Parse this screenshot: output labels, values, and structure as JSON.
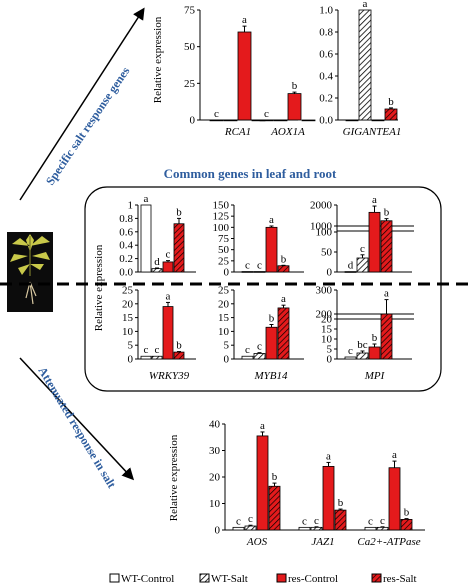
{
  "colors": {
    "red": "#e41a1c",
    "heading_blue": "#2e5d9e",
    "hatch_line": "#000000",
    "wt_control": "#ffffff"
  },
  "headings": {
    "specific": "Specific salt response genes",
    "common": "Common  genes in leaf and root",
    "attenuated": "Attenuated response in salt"
  },
  "ylabels": {
    "top": "Relative expression",
    "middle": "Relative expression",
    "bottom": "Relative expression"
  },
  "legend": [
    {
      "label": "WT-Control",
      "style": "white"
    },
    {
      "label": "WT-Salt",
      "style": "white-hatch"
    },
    {
      "label": "res-Control",
      "style": "red"
    },
    {
      "label": "res-Salt",
      "style": "red-hatch"
    }
  ],
  "chart_data": [
    {
      "type": "bar",
      "panel": "top-left",
      "categories": [
        "RCA1",
        "AOX1A"
      ],
      "series": [
        {
          "name": "WT-Control",
          "values": [
            0,
            0
          ]
        },
        {
          "name": "WT-Salt",
          "values": [
            0,
            0
          ]
        },
        {
          "name": "res-Control",
          "values": [
            60,
            18
          ]
        },
        {
          "name": "res-Salt",
          "values": [
            0,
            0
          ]
        }
      ],
      "errors": [
        [
          0,
          0
        ],
        [
          0,
          0
        ],
        [
          4,
          1
        ],
        [
          0,
          0
        ]
      ],
      "letters": [
        [
          "c",
          "c"
        ],
        [
          "",
          ""
        ],
        [
          "a",
          "b"
        ],
        [
          "",
          ""
        ]
      ],
      "ylim": [
        0,
        75
      ],
      "yticks": [
        "0",
        "25",
        "50",
        "75"
      ],
      "ylabel": "Relative expression"
    },
    {
      "type": "bar",
      "panel": "top-right",
      "categories": [
        "GIGANTEA1"
      ],
      "series": [
        {
          "name": "WT-Control",
          "values": [
            0
          ]
        },
        {
          "name": "WT-Salt",
          "values": [
            1.0
          ]
        },
        {
          "name": "res-Control",
          "values": [
            0
          ]
        },
        {
          "name": "res-Salt",
          "values": [
            0.1
          ]
        }
      ],
      "errors": [
        [
          0
        ],
        [
          0
        ],
        [
          0
        ],
        [
          0.01
        ]
      ],
      "letters": [
        [
          ""
        ],
        [
          "a"
        ],
        [
          ""
        ],
        [
          "b"
        ]
      ],
      "ylim": [
        0,
        1.0
      ],
      "yticks": [
        "0.0",
        "0.2",
        "0.4",
        "0.6",
        "0.8",
        "1.0"
      ]
    },
    {
      "type": "bar",
      "panel": "middle-1",
      "categories": [
        "WRKY39"
      ],
      "series": [
        {
          "name": "WT-Control",
          "values": [
            1.0
          ]
        },
        {
          "name": "WT-Salt",
          "values": [
            0.05
          ]
        },
        {
          "name": "res-Control",
          "values": [
            0.15
          ]
        },
        {
          "name": "res-Salt",
          "values": [
            0.72
          ]
        }
      ],
      "errors": [
        [
          0
        ],
        [
          0.01
        ],
        [
          0.02
        ],
        [
          0.08
        ]
      ],
      "letters": [
        [
          "a"
        ],
        [
          "d"
        ],
        [
          "c"
        ],
        [
          "b"
        ]
      ],
      "ylim": [
        0,
        1.0
      ],
      "yticks": [
        "0.0",
        "0.2",
        "0.4",
        "0.6",
        "0.8",
        "1"
      ]
    },
    {
      "type": "bar",
      "panel": "middle-2",
      "categories": [
        "MYB14"
      ],
      "series": [
        {
          "name": "WT-Control",
          "values": [
            1
          ]
        },
        {
          "name": "WT-Salt",
          "values": [
            1
          ]
        },
        {
          "name": "res-Control",
          "values": [
            100
          ]
        },
        {
          "name": "res-Salt",
          "values": [
            14
          ]
        }
      ],
      "errors": [
        [
          0
        ],
        [
          0
        ],
        [
          3
        ],
        [
          1
        ]
      ],
      "letters": [
        [
          "c"
        ],
        [
          "c"
        ],
        [
          "a"
        ],
        [
          "b"
        ]
      ],
      "ylim": [
        0,
        150
      ],
      "yticks": [
        "0",
        "25",
        "50",
        "75",
        "100",
        "125",
        "150"
      ]
    },
    {
      "type": "bar",
      "panel": "middle-3",
      "categories": [
        "MPI"
      ],
      "series": [
        {
          "name": "WT-Control",
          "values": [
            1
          ]
        },
        {
          "name": "WT-Salt",
          "values": [
            35
          ]
        },
        {
          "name": "res-Control",
          "values": [
            1650
          ]
        },
        {
          "name": "res-Salt",
          "values": [
            1250
          ]
        }
      ],
      "errors": [
        [
          0
        ],
        [
          8
        ],
        [
          300
        ],
        [
          100
        ]
      ],
      "letters": [
        [
          "d"
        ],
        [
          "c"
        ],
        [
          "a"
        ],
        [
          "b"
        ]
      ],
      "ylim": [
        0,
        2000
      ],
      "yticks": [
        "0",
        "50",
        "100",
        "1000",
        "2000"
      ]
    },
    {
      "type": "bar",
      "panel": "lower-1",
      "categories": [
        "WRKY39"
      ],
      "series": [
        {
          "name": "WT-Control",
          "values": [
            1
          ]
        },
        {
          "name": "WT-Salt",
          "values": [
            1
          ]
        },
        {
          "name": "res-Control",
          "values": [
            19
          ]
        },
        {
          "name": "res-Salt",
          "values": [
            2.5
          ]
        }
      ],
      "errors": [
        [
          0
        ],
        [
          0
        ],
        [
          1.5
        ],
        [
          0.2
        ]
      ],
      "letters": [
        [
          "c"
        ],
        [
          "c"
        ],
        [
          "a"
        ],
        [
          "b"
        ]
      ],
      "ylim": [
        0,
        25
      ],
      "yticks": [
        "0",
        "5",
        "10",
        "15",
        "20",
        "25"
      ],
      "xlabel": "WRKY39"
    },
    {
      "type": "bar",
      "panel": "lower-2",
      "categories": [
        "MYB14"
      ],
      "series": [
        {
          "name": "WT-Control",
          "values": [
            1
          ]
        },
        {
          "name": "WT-Salt",
          "values": [
            2
          ]
        },
        {
          "name": "res-Control",
          "values": [
            11.5
          ]
        },
        {
          "name": "res-Salt",
          "values": [
            18.5
          ]
        }
      ],
      "errors": [
        [
          0
        ],
        [
          0.3
        ],
        [
          1
        ],
        [
          1
        ]
      ],
      "letters": [
        [
          "c"
        ],
        [
          "c"
        ],
        [
          "b"
        ],
        [
          "a"
        ]
      ],
      "ylim": [
        0,
        25
      ],
      "yticks": [
        "0",
        "5",
        "10",
        "15",
        "20",
        "25"
      ],
      "xlabel": "MYB14"
    },
    {
      "type": "bar",
      "panel": "lower-3",
      "categories": [
        "MPI"
      ],
      "series": [
        {
          "name": "WT-Control",
          "values": [
            1
          ]
        },
        {
          "name": "WT-Salt",
          "values": [
            3
          ]
        },
        {
          "name": "res-Control",
          "values": [
            6
          ]
        },
        {
          "name": "res-Salt",
          "values": [
            200
          ]
        }
      ],
      "errors": [
        [
          0
        ],
        [
          1
        ],
        [
          1.5
        ],
        [
          60
        ]
      ],
      "letters": [
        [
          "c"
        ],
        [
          "bc"
        ],
        [
          "b"
        ],
        [
          "a"
        ]
      ],
      "ylim": [
        0,
        300
      ],
      "yticks": [
        "0",
        "5",
        "10",
        "15",
        "20",
        "200",
        "300"
      ],
      "xlabel": "MPI"
    },
    {
      "type": "bar",
      "panel": "bottom",
      "categories": [
        "AOS",
        "JAZ1",
        "Ca2+-ATPase"
      ],
      "series": [
        {
          "name": "WT-Control",
          "values": [
            1,
            1,
            1
          ]
        },
        {
          "name": "WT-Salt",
          "values": [
            1.5,
            1,
            1
          ]
        },
        {
          "name": "res-Control",
          "values": [
            35.5,
            24,
            23.5
          ]
        },
        {
          "name": "res-Salt",
          "values": [
            16.5,
            7.5,
            4
          ]
        }
      ],
      "errors": [
        [
          0,
          0,
          0
        ],
        [
          0.3,
          0.2,
          0.2
        ],
        [
          1.5,
          1.5,
          2.5
        ],
        [
          1.2,
          0.4,
          0.3
        ]
      ],
      "letters": [
        [
          "c",
          "c",
          "c"
        ],
        [
          "c",
          "c",
          "c"
        ],
        [
          "a",
          "a",
          "a"
        ],
        [
          "b",
          "b",
          "b"
        ]
      ],
      "ylim": [
        0,
        40
      ],
      "yticks": [
        "0",
        "10",
        "20",
        "30",
        "40"
      ],
      "ylabel": "Relative expression"
    }
  ]
}
